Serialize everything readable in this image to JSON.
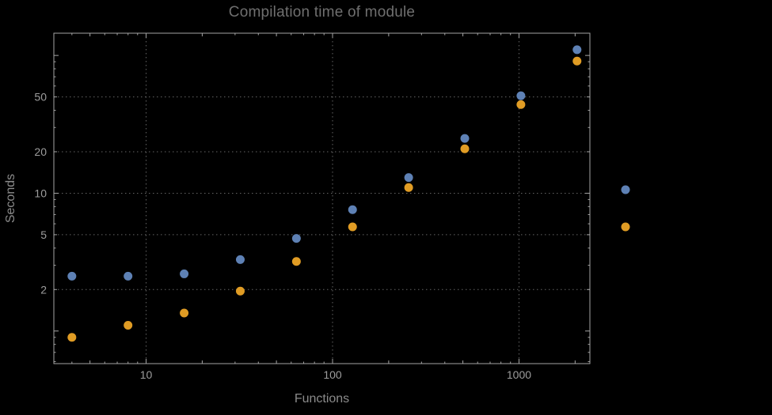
{
  "chart_data": {
    "type": "scatter",
    "title": "Compilation time of module",
    "xlabel": "Functions",
    "ylabel": "Seconds",
    "xscale": "log",
    "yscale": "log",
    "xlim": [
      3.2,
      2400
    ],
    "ylim": [
      0.58,
      145
    ],
    "x_ticks": [
      10,
      100,
      1000
    ],
    "y_ticks": [
      2,
      5,
      10,
      20,
      50
    ],
    "grid": "dotted lines at major ticks",
    "legend_position": "right-outside",
    "x": [
      4,
      8,
      16,
      32,
      64,
      128,
      256,
      512,
      1024,
      2048
    ],
    "series": [
      {
        "name": "blue-series",
        "color": "#5e81b5",
        "values": [
          2.5,
          2.5,
          2.6,
          3.3,
          4.7,
          7.6,
          13,
          25,
          51,
          110
        ]
      },
      {
        "name": "orange-series",
        "color": "#e09c24",
        "values": [
          0.9,
          1.1,
          1.35,
          1.95,
          3.2,
          5.7,
          11,
          21,
          44,
          91
        ]
      }
    ]
  },
  "legend": {
    "markers": [
      {
        "name": "blue",
        "color": "#5e81b5"
      },
      {
        "name": "orange",
        "color": "#e09c24"
      }
    ]
  },
  "style": {
    "background_color": "#000000",
    "frame_color": "#a5a5a5",
    "grid_color": "#646464",
    "title_color": "#6f6f6f",
    "axis_label_color": "#8b8b8b",
    "tick_label_color": "#9d9d9d",
    "point_radius": 5.5,
    "tick_label_font_size": 14
  }
}
